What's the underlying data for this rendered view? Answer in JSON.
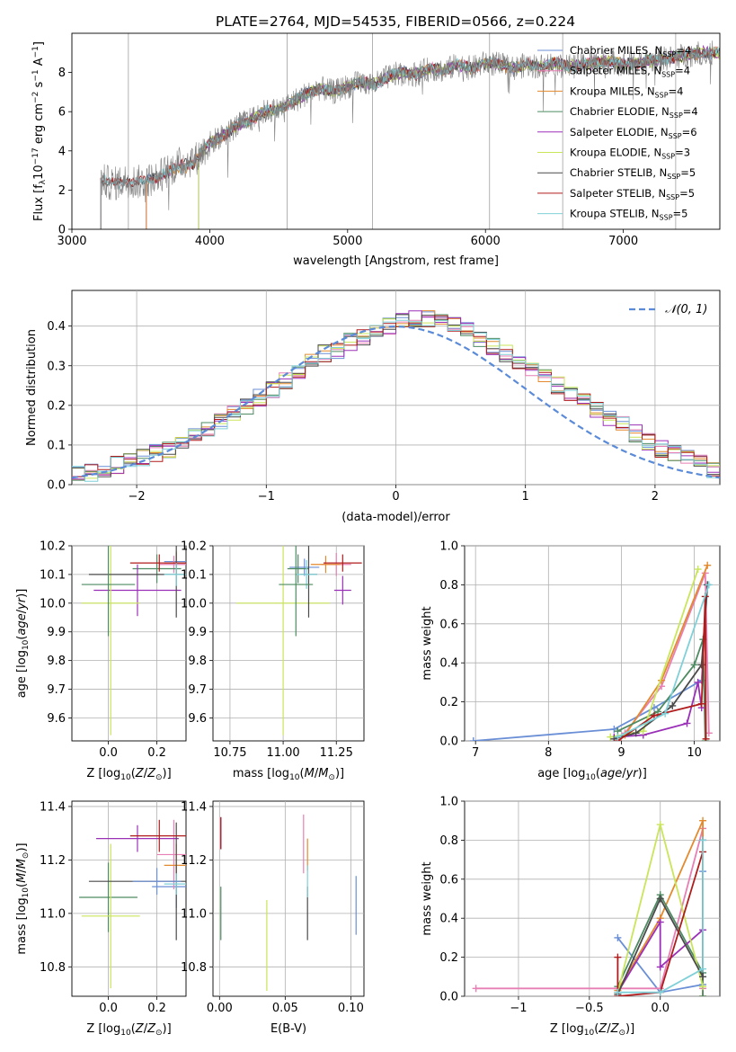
{
  "figure": {
    "title": "PLATE=2764, MJD=54535, FIBERID=0566, z=0.224"
  },
  "colors": {
    "axis": "#000000",
    "grid": "#b0b0b0",
    "data_spectrum": "#808080",
    "normal_curve": "#5b8bd8"
  },
  "chart_data": [
    {
      "id": "spectrum",
      "type": "line",
      "title": "PLATE=2764, MJD=54535, FIBERID=0566, z=0.224",
      "xlabel": "wavelength [Angstrom, rest frame]",
      "ylabel": "Flux [f_λ 10^-17 erg cm^-2 s^-1 A^-1]",
      "xlim": [
        3000,
        7700
      ],
      "ylim": [
        0,
        10
      ],
      "xticks": [
        3000,
        4000,
        5000,
        6000,
        7000
      ],
      "yticks": [
        0,
        2,
        4,
        6,
        8
      ],
      "grid": false,
      "legend_position": "top-right",
      "x_approx": [
        3210,
        3300,
        3400,
        3500,
        3600,
        3700,
        3800,
        3900,
        4000,
        4100,
        4200,
        4300,
        4400,
        4500,
        4600,
        4700,
        4800,
        4900,
        5000,
        5100,
        5200,
        5300,
        5400,
        5500,
        5600,
        5700,
        5800,
        5900,
        6000,
        6100,
        6200,
        6300,
        6400,
        6500,
        6600,
        6700,
        6800,
        6900,
        7000,
        7100,
        7200,
        7300,
        7400,
        7550
      ],
      "y_approx": [
        2.5,
        2.3,
        2.5,
        2.4,
        2.6,
        3.0,
        3.4,
        3.6,
        4.4,
        4.8,
        5.3,
        5.6,
        6.0,
        6.1,
        6.5,
        6.9,
        7.2,
        7.0,
        7.3,
        7.5,
        7.4,
        7.8,
        8.0,
        7.9,
        8.2,
        8.1,
        8.4,
        8.2,
        8.5,
        8.4,
        8.2,
        8.4,
        8.3,
        8.5,
        8.3,
        8.4,
        8.5,
        8.6,
        8.4,
        8.5,
        8.6,
        8.7,
        8.8,
        9.0
      ],
      "series": [
        {
          "name": "Chabrier MILES, N_SSP=4",
          "label_main": "Chabrier MILES, N",
          "label_sub": "SSP",
          "label_tail": "=4",
          "color": "#6a8fd6",
          "start": 3540
        },
        {
          "name": "Salpeter MILES, N_SSP=4",
          "label_main": "Salpeter MILES, N",
          "label_sub": "SSP",
          "label_tail": "=4",
          "color": "#e77fb4",
          "start": 3540
        },
        {
          "name": "Kroupa MILES, N_SSP=4",
          "label_main": "Kroupa MILES, N",
          "label_sub": "SSP",
          "label_tail": "=4",
          "color": "#e38a2e",
          "start": 3540
        },
        {
          "name": "Chabrier ELODIE, N_SSP=4",
          "label_main": "Chabrier ELODIE, N",
          "label_sub": "SSP",
          "label_tail": "=4",
          "color": "#4e8b62",
          "start": 3920
        },
        {
          "name": "Salpeter ELODIE, N_SSP=6",
          "label_main": "Salpeter ELODIE, N",
          "label_sub": "SSP",
          "label_tail": "=6",
          "color": "#9b30b8",
          "start": 3920
        },
        {
          "name": "Kroupa ELODIE, N_SSP=3",
          "label_main": "Kroupa ELODIE, N",
          "label_sub": "SSP",
          "label_tail": "=3",
          "color": "#c9e55a",
          "start": 3920
        },
        {
          "name": "Chabrier STELIB, N_SSP=5",
          "label_main": "Chabrier STELIB, N",
          "label_sub": "SSP",
          "label_tail": "=5",
          "color": "#4a4a4a",
          "start": 3210
        },
        {
          "name": "Salpeter STELIB, N_SSP=5",
          "label_main": "Salpeter STELIB, N",
          "label_sub": "SSP",
          "label_tail": "=5",
          "color": "#b01c1c",
          "start": 3210
        },
        {
          "name": "Kroupa STELIB, N_SSP=5",
          "label_main": "Kroupa STELIB, N",
          "label_sub": "SSP",
          "label_tail": "=5",
          "color": "#7fd0d8",
          "start": 3210
        }
      ]
    },
    {
      "id": "residuals",
      "type": "histogram",
      "xlabel": "(data-model)/error",
      "ylabel": "Normed distribution",
      "xlim": [
        -2.5,
        2.5
      ],
      "ylim": [
        0,
        0.49
      ],
      "xticks": [
        -2,
        -1,
        0,
        1,
        2
      ],
      "yticks": [
        0.0,
        0.1,
        0.2,
        0.3,
        0.4
      ],
      "grid": true,
      "legend_position": "top-right",
      "legend": [
        "N(0,1)"
      ],
      "bin_width": 0.1,
      "bins_approx": [
        0.03,
        0.03,
        0.04,
        0.05,
        0.06,
        0.07,
        0.08,
        0.09,
        0.1,
        0.12,
        0.14,
        0.16,
        0.18,
        0.2,
        0.22,
        0.24,
        0.26,
        0.28,
        0.31,
        0.33,
        0.34,
        0.36,
        0.37,
        0.39,
        0.4,
        0.41,
        0.42,
        0.42,
        0.41,
        0.4,
        0.39,
        0.37,
        0.35,
        0.33,
        0.31,
        0.29,
        0.27,
        0.25,
        0.23,
        0.21,
        0.19,
        0.17,
        0.15,
        0.13,
        0.11,
        0.09,
        0.08,
        0.07,
        0.06,
        0.04
      ]
    },
    {
      "id": "age_vs_Z",
      "type": "scatter",
      "xlabel": "Z [log10(Z/Z_sun)]",
      "ylabel": "age [log10(age/yr)]",
      "xlim": [
        -0.15,
        0.32
      ],
      "ylim": [
        9.52,
        10.2
      ],
      "xticks": [
        0.0,
        0.2
      ],
      "yticks": [
        9.6,
        9.7,
        9.8,
        9.9,
        10.0,
        10.1,
        10.2
      ],
      "grid": true,
      "points": [
        {
          "x": 0.28,
          "y": 10.145,
          "xerr": 0.05,
          "yerr": 0.03,
          "color": "#6a8fd6"
        },
        {
          "x": 0.27,
          "y": 10.135,
          "xerr": 0.06,
          "yerr": 0.03,
          "color": "#e77fb4"
        },
        {
          "x": 0.28,
          "y": 10.14,
          "xerr": 0.05,
          "yerr": 0.04,
          "color": "#e38a2e"
        },
        {
          "x": 0.2,
          "y": 10.12,
          "xerr": 0.1,
          "yerr": 0.05,
          "color": "#4e8b62"
        },
        {
          "x": 0.12,
          "y": 10.045,
          "xerr": 0.18,
          "yerr": 0.09,
          "color": "#9b30b8"
        },
        {
          "x": 0.01,
          "y": 10.0,
          "xerr": 0.12,
          "yerr": 0.46,
          "color": "#c9e55a"
        },
        {
          "x": 0.28,
          "y": 10.1,
          "xerr": 0.36,
          "yerr": 0.15,
          "color": "#4a4a4a"
        },
        {
          "x": 0.21,
          "y": 10.14,
          "xerr": 0.12,
          "yerr": 0.03,
          "color": "#b01c1c"
        },
        {
          "x": 0.28,
          "y": 10.1,
          "xerr": 0.05,
          "yerr": 0.04,
          "color": "#7fd0d8"
        },
        {
          "x": 0.0,
          "y": 10.065,
          "xerr": 0.11,
          "yerr": 0.18,
          "color": "#4e8b62"
        }
      ]
    },
    {
      "id": "age_vs_mass",
      "type": "scatter",
      "xlabel": "mass [log10(M/M_sun)]",
      "ylabel": "",
      "xlim": [
        10.67,
        11.38
      ],
      "ylim": [
        9.52,
        10.2
      ],
      "xticks": [
        10.75,
        11.0,
        11.25
      ],
      "yticks": [
        9.6,
        9.7,
        9.8,
        9.9,
        10.0,
        10.1,
        10.2
      ],
      "grid": true,
      "points": [
        {
          "x": 11.1,
          "y": 10.125,
          "xerr": 0.07,
          "yerr": 0.03,
          "color": "#6a8fd6"
        },
        {
          "x": 11.25,
          "y": 10.135,
          "xerr": 0.07,
          "yerr": 0.04,
          "color": "#e77fb4"
        },
        {
          "x": 11.2,
          "y": 10.135,
          "xerr": 0.07,
          "yerr": 0.03,
          "color": "#e38a2e"
        },
        {
          "x": 11.07,
          "y": 10.12,
          "xerr": 0.05,
          "yerr": 0.05,
          "color": "#4e8b62"
        },
        {
          "x": 11.28,
          "y": 10.045,
          "xerr": 0.04,
          "yerr": 0.05,
          "color": "#9b30b8"
        },
        {
          "x": 11.0,
          "y": 10.0,
          "xerr": 0.22,
          "yerr": 0.46,
          "color": "#c9e55a"
        },
        {
          "x": 11.12,
          "y": 10.1,
          "xerr": 0.04,
          "yerr": 0.15,
          "color": "#4a4a4a"
        },
        {
          "x": 11.28,
          "y": 10.14,
          "xerr": 0.09,
          "yerr": 0.03,
          "color": "#b01c1c"
        },
        {
          "x": 11.11,
          "y": 10.1,
          "xerr": 0.05,
          "yerr": 0.05,
          "color": "#7fd0d8"
        },
        {
          "x": 11.06,
          "y": 10.065,
          "xerr": 0.08,
          "yerr": 0.18,
          "color": "#4e8b62"
        }
      ]
    },
    {
      "id": "weight_vs_age",
      "type": "line",
      "xlabel": "age [log10(age/yr)]",
      "ylabel": "mass weight",
      "xlim": [
        6.85,
        10.35
      ],
      "ylim": [
        0.0,
        1.0
      ],
      "xticks": [
        7,
        8,
        9,
        10
      ],
      "yticks": [
        0.0,
        0.2,
        0.4,
        0.6,
        0.8,
        1.0
      ],
      "grid": true,
      "series": [
        {
          "color": "#6a8fd6",
          "x": [
            6.97,
            8.9,
            9.45,
            10.1,
            10.18
          ],
          "y": [
            0.0,
            0.06,
            0.17,
            0.31,
            0.8
          ]
        },
        {
          "color": "#e77fb4",
          "x": [
            9.05,
            9.55,
            10.15,
            10.2
          ],
          "y": [
            0.04,
            0.28,
            0.86,
            0.04
          ]
        },
        {
          "color": "#e38a2e",
          "x": [
            9.05,
            9.55,
            10.18
          ],
          "y": [
            0.03,
            0.31,
            0.9
          ]
        },
        {
          "color": "#4e8b62",
          "x": [
            8.95,
            9.5,
            10.0,
            10.12,
            10.15
          ],
          "y": [
            0.05,
            0.15,
            0.39,
            0.52,
            0.0
          ]
        },
        {
          "color": "#9b30b8",
          "x": [
            8.9,
            9.3,
            9.9,
            10.05,
            10.1
          ],
          "y": [
            0.02,
            0.03,
            0.09,
            0.3,
            0.17
          ]
        },
        {
          "color": "#c9e55a",
          "x": [
            8.85,
            9.3,
            10.05
          ],
          "y": [
            0.02,
            0.05,
            0.88
          ]
        },
        {
          "color": "#4a4a4a",
          "x": [
            8.9,
            9.2,
            9.7,
            10.1,
            10.18
          ],
          "y": [
            0.01,
            0.04,
            0.18,
            0.39,
            0.8
          ]
        },
        {
          "color": "#b01c1c",
          "x": [
            8.95,
            9.45,
            10.1,
            10.15,
            10.16
          ],
          "y": [
            0.0,
            0.13,
            0.19,
            0.74,
            0.01
          ]
        },
        {
          "color": "#7fd0d8",
          "x": [
            8.95,
            9.6,
            10.2
          ],
          "y": [
            0.02,
            0.14,
            0.8
          ]
        }
      ]
    },
    {
      "id": "mass_vs_Z",
      "type": "scatter",
      "xlabel": "Z [log10(Z/Z_sun)]",
      "ylabel": "mass [log10(M/M_sun)]",
      "xlim": [
        -0.15,
        0.32
      ],
      "ylim": [
        10.69,
        11.42
      ],
      "xticks": [
        0.0,
        0.2
      ],
      "yticks": [
        10.8,
        11.0,
        11.2,
        11.4
      ],
      "grid": true,
      "points": [
        {
          "x": 0.28,
          "y": 11.1,
          "xerr": 0.1,
          "yerr": 0.08,
          "color": "#6a8fd6"
        },
        {
          "x": 0.27,
          "y": 11.22,
          "xerr": 0.07,
          "yerr": 0.13,
          "color": "#e77fb4"
        },
        {
          "x": 0.28,
          "y": 11.18,
          "xerr": 0.05,
          "yerr": 0.08,
          "color": "#e38a2e"
        },
        {
          "x": 0.0,
          "y": 11.06,
          "xerr": 0.12,
          "yerr": 0.13,
          "color": "#4e8b62"
        },
        {
          "x": 0.12,
          "y": 11.28,
          "xerr": 0.17,
          "yerr": 0.05,
          "color": "#9b30b8"
        },
        {
          "x": 0.01,
          "y": 10.99,
          "xerr": 0.12,
          "yerr": 0.27,
          "color": "#c9e55a"
        },
        {
          "x": 0.28,
          "y": 11.12,
          "xerr": 0.36,
          "yerr": 0.22,
          "color": "#4a4a4a"
        },
        {
          "x": 0.21,
          "y": 11.29,
          "xerr": 0.12,
          "yerr": 0.06,
          "color": "#b01c1c"
        },
        {
          "x": 0.28,
          "y": 11.11,
          "xerr": 0.05,
          "yerr": 0.04,
          "color": "#7fd0d8"
        },
        {
          "x": 0.2,
          "y": 11.12,
          "xerr": 0.1,
          "yerr": 0.05,
          "color": "#6a8fd6"
        }
      ]
    },
    {
      "id": "mass_vs_ebv",
      "type": "scatter",
      "xlabel": "E(B-V)",
      "ylabel": "",
      "xlim": [
        -0.005,
        0.11
      ],
      "ylim": [
        10.69,
        11.42
      ],
      "xticks": [
        0.0,
        0.05,
        0.1
      ],
      "yticks": [
        10.8,
        11.0,
        11.2,
        11.4
      ],
      "grid": true,
      "points": [
        {
          "x": 0.104,
          "y": 11.03,
          "xerr": 0.0,
          "yerr": 0.11,
          "color": "#6a8fd6"
        },
        {
          "x": 0.064,
          "y": 11.26,
          "xerr": 0.0,
          "yerr": 0.11,
          "color": "#e77fb4"
        },
        {
          "x": 0.067,
          "y": 11.22,
          "xerr": 0.0,
          "yerr": 0.06,
          "color": "#e38a2e"
        },
        {
          "x": 0.001,
          "y": 11.0,
          "xerr": 0.0,
          "yerr": 0.1,
          "color": "#4e8b62"
        },
        {
          "x": 0.001,
          "y": 11.3,
          "xerr": 0.0,
          "yerr": 0.06,
          "color": "#9b30b8"
        },
        {
          "x": 0.036,
          "y": 10.88,
          "xerr": 0.0,
          "yerr": 0.17,
          "color": "#c9e55a"
        },
        {
          "x": 0.067,
          "y": 11.0,
          "xerr": 0.0,
          "yerr": 0.1,
          "color": "#4a4a4a"
        },
        {
          "x": 0.001,
          "y": 11.3,
          "xerr": 0.0,
          "yerr": 0.06,
          "color": "#b01c1c"
        },
        {
          "x": 0.067,
          "y": 11.12,
          "xerr": 0.0,
          "yerr": 0.06,
          "color": "#7fd0d8"
        }
      ]
    },
    {
      "id": "weight_vs_Z",
      "type": "line",
      "xlabel": "Z [log10(Z/Z_sun)]",
      "ylabel": "mass weight",
      "xlim": [
        -1.38,
        0.42
      ],
      "ylim": [
        0.0,
        1.0
      ],
      "xticks": [
        -1.0,
        -0.5,
        0.0
      ],
      "yticks": [
        0.0,
        0.2,
        0.4,
        0.6,
        0.8,
        1.0
      ],
      "grid": true,
      "series": [
        {
          "color": "#6a8fd6",
          "x": [
            -0.3,
            0.0,
            0.3,
            0.3
          ],
          "y": [
            0.3,
            0.02,
            0.06,
            0.64
          ]
        },
        {
          "color": "#e77fb4",
          "x": [
            -1.3,
            -0.3,
            0.0,
            0.3,
            0.3
          ],
          "y": [
            0.04,
            0.04,
            0.04,
            0.86,
            0.04
          ]
        },
        {
          "color": "#e38a2e",
          "x": [
            -0.3,
            0.0,
            0.3,
            0.3
          ],
          "y": [
            0.03,
            0.4,
            0.9,
            0.0
          ]
        },
        {
          "color": "#4e8b62",
          "x": [
            -0.3,
            0.0,
            0.3,
            0.3
          ],
          "y": [
            0.05,
            0.52,
            0.12,
            0.0
          ]
        },
        {
          "color": "#9b30b8",
          "x": [
            -0.3,
            0.0,
            0.0,
            0.3
          ],
          "y": [
            0.02,
            0.38,
            0.15,
            0.34
          ]
        },
        {
          "color": "#c9e55a",
          "x": [
            -0.3,
            0.0,
            0.3
          ],
          "y": [
            0.02,
            0.88,
            0.05
          ]
        },
        {
          "color": "#4a4a4a",
          "x": [
            -0.3,
            0.0,
            0.3,
            0.3
          ],
          "y": [
            0.01,
            0.5,
            0.1,
            0.8
          ]
        },
        {
          "color": "#b01c1c",
          "x": [
            -0.3,
            -0.3,
            0.0,
            0.3
          ],
          "y": [
            0.2,
            0.0,
            0.02,
            0.74
          ]
        },
        {
          "color": "#7fd0d8",
          "x": [
            -0.3,
            0.0,
            0.3,
            0.3
          ],
          "y": [
            0.02,
            0.02,
            0.14,
            0.8
          ]
        }
      ]
    }
  ]
}
